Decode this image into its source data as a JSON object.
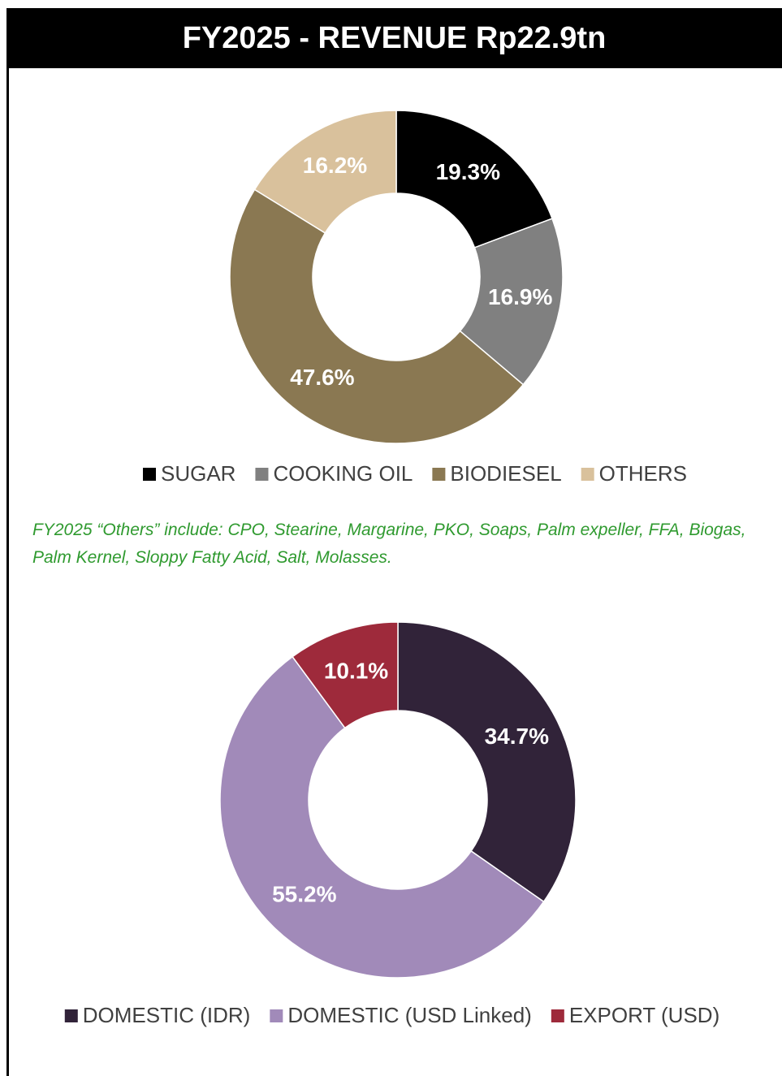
{
  "title": "FY2025 - REVENUE Rp22.9tn",
  "note": "FY2025 “Others” include: CPO, Stearine, Margarine, PKO, Soaps, Palm expeller, FFA, Biogas, Palm Kernel, Sloppy Fatty Acid, Salt, Molasses.",
  "chart_data": [
    {
      "type": "donut",
      "categories": [
        "SUGAR",
        "COOKING OIL",
        "BIODIESEL",
        "OTHERS"
      ],
      "values": [
        19.3,
        16.9,
        47.6,
        16.2
      ],
      "value_labels": [
        "19.3%",
        "16.9%",
        "47.6%",
        "16.2%"
      ],
      "colors": [
        "#000000",
        "#808080",
        "#8a7852",
        "#d9c19c"
      ]
    },
    {
      "type": "donut",
      "categories": [
        "DOMESTIC (IDR)",
        "DOMESTIC (USD Linked)",
        "EXPORT (USD)"
      ],
      "values": [
        34.7,
        55.2,
        10.1
      ],
      "value_labels": [
        "34.7%",
        "55.2%",
        "10.1%"
      ],
      "colors": [
        "#312339",
        "#a18ab9",
        "#9e2a3b"
      ]
    }
  ]
}
